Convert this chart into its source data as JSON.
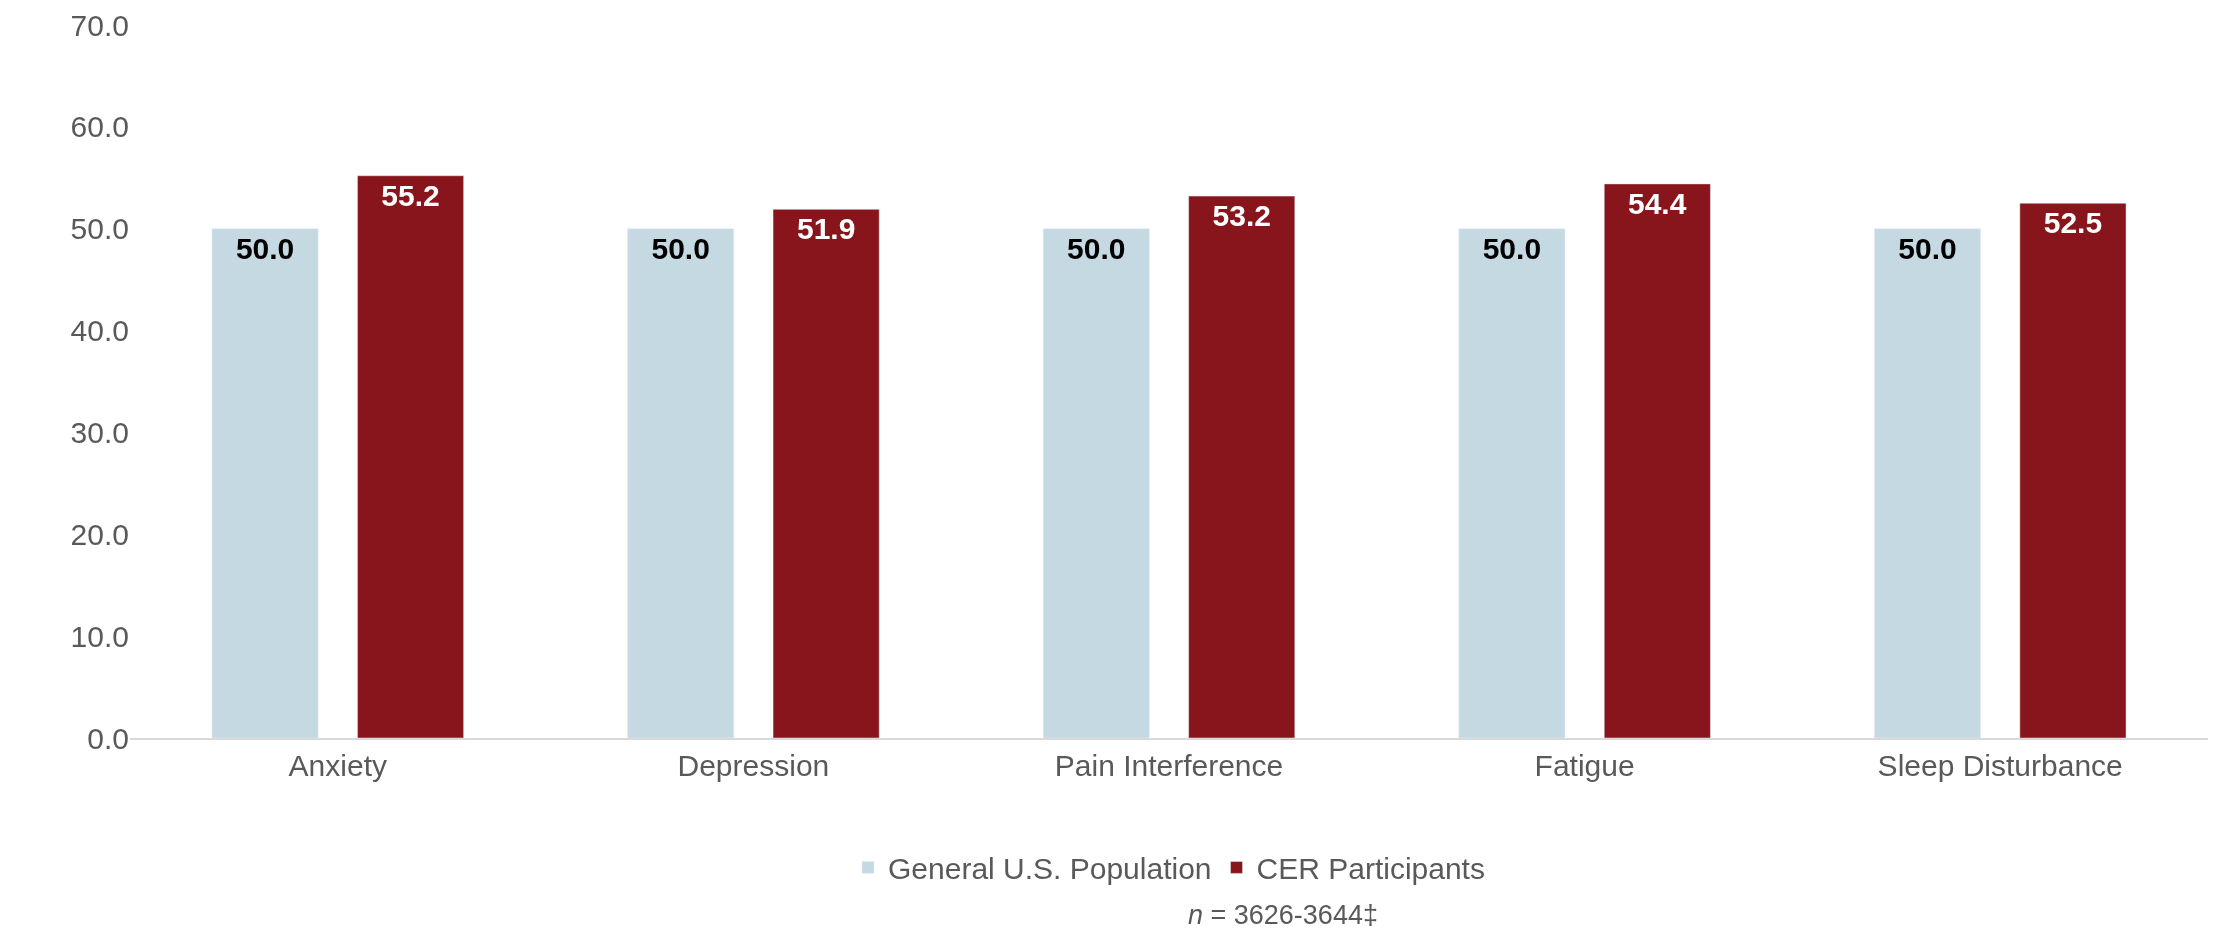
{
  "chart_data": {
    "type": "bar",
    "categories": [
      "Anxiety",
      "Depression",
      "Pain Interference",
      "Fatigue",
      "Sleep Disturbance"
    ],
    "series": [
      {
        "name": "General U.S. Population",
        "color": "#c5d9e3",
        "values": [
          50.0,
          50.0,
          50.0,
          50.0,
          50.0
        ],
        "value_labels": [
          "50.0",
          "50.0",
          "50.0",
          "50.0",
          "50.0"
        ]
      },
      {
        "name": "CER Participants",
        "color": "#87151b",
        "values": [
          55.2,
          51.9,
          53.2,
          54.4,
          52.5
        ],
        "value_labels": [
          "55.2",
          "51.9",
          "53.2",
          "54.4",
          "52.5"
        ]
      }
    ],
    "ylim": [
      0,
      70
    ],
    "yticks": [
      {
        "value": 0,
        "label": "0.0"
      },
      {
        "value": 10,
        "label": "10.0"
      },
      {
        "value": 20,
        "label": "20.0"
      },
      {
        "value": 30,
        "label": "30.0"
      },
      {
        "value": 40,
        "label": "40.0"
      },
      {
        "value": 50,
        "label": "50.0"
      },
      {
        "value": 60,
        "label": "60.0"
      },
      {
        "value": 70,
        "label": "70.0"
      }
    ],
    "legend": "bottom",
    "annotations": [
      "n = 3626-3644‡"
    ]
  }
}
